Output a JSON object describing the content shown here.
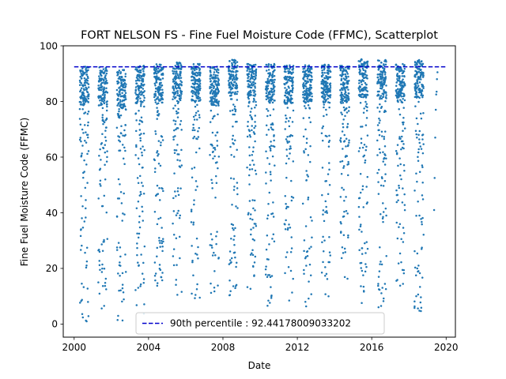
{
  "chart_data": {
    "type": "scatter",
    "title": "FORT NELSON FS - Fine Fuel Moisture Code (FFMC), Scatterplot",
    "xlabel": "Date",
    "ylabel": "Fine Fuel Moisture Code (FFMC)",
    "x_scale": "date",
    "xlim": [
      "1999-06-01",
      "2020-07-01"
    ],
    "ylim": [
      -4.7,
      100
    ],
    "x_ticks": [
      {
        "date": "2000-01-01",
        "label": "2000"
      },
      {
        "date": "2004-01-01",
        "label": "2004"
      },
      {
        "date": "2008-01-01",
        "label": "2008"
      },
      {
        "date": "2012-01-01",
        "label": "2012"
      },
      {
        "date": "2016-01-01",
        "label": "2016"
      },
      {
        "date": "2020-01-01",
        "label": "2020"
      }
    ],
    "y_ticks": [
      0,
      20,
      40,
      60,
      80,
      100
    ],
    "grid": false,
    "legend": {
      "placement": "lower center",
      "label": "90th percentile : 92.44178009033202"
    },
    "reference_line": {
      "y": 92.44178009033202,
      "x_start": "2000-01-01",
      "x_end": "2019-12-31",
      "color": "#0000cc",
      "style": "dashed"
    },
    "series": [
      {
        "color": "#1f77b4",
        "years": [
          2000,
          2001,
          2002,
          2003,
          2004,
          2005,
          2006,
          2007,
          2008,
          2009,
          2010,
          2011,
          2012,
          2013,
          2014,
          2015,
          2016,
          2017,
          2018
        ],
        "season_start": "04-20",
        "season_end": "10-15",
        "min_values": [
          0,
          5.5,
          1,
          2.8,
          13,
          8.8,
          7,
          10,
          9.5,
          12.5,
          6,
          8,
          5.5,
          8,
          12,
          6.5,
          5,
          10,
          2
        ],
        "max_values": [
          92.5,
          92.5,
          91.5,
          93,
          93.5,
          94,
          93.5,
          92.5,
          95,
          93.5,
          93.5,
          93,
          93.5,
          93.5,
          93,
          95.5,
          95,
          93.5,
          95
        ]
      }
    ],
    "partial_year_2019": [
      {
        "date": "2019-05-10",
        "y": 41
      },
      {
        "date": "2019-05-20",
        "y": 52.5
      },
      {
        "date": "2019-06-01",
        "y": 67
      },
      {
        "date": "2019-06-12",
        "y": 77
      },
      {
        "date": "2019-06-20",
        "y": 82.5
      },
      {
        "date": "2019-06-28",
        "y": 83.5
      },
      {
        "date": "2019-07-05",
        "y": 88
      },
      {
        "date": "2019-07-15",
        "y": 90.5
      }
    ]
  }
}
